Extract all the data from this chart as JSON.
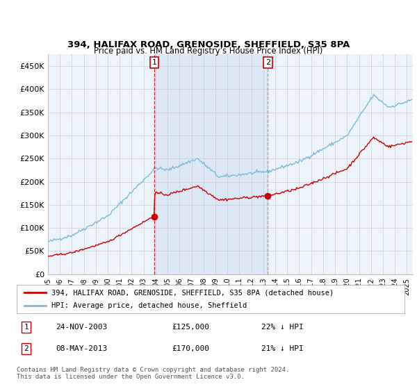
{
  "title": "394, HALIFAX ROAD, GRENOSIDE, SHEFFIELD, S35 8PA",
  "subtitle": "Price paid vs. HM Land Registry’s House Price Index (HPI)",
  "xlim_start": 1995.0,
  "xlim_end": 2025.5,
  "ylim": [
    0,
    475000
  ],
  "yticks": [
    0,
    50000,
    100000,
    150000,
    200000,
    250000,
    300000,
    350000,
    400000,
    450000
  ],
  "ytick_labels": [
    "£0",
    "£50K",
    "£100K",
    "£150K",
    "£200K",
    "£250K",
    "£300K",
    "£350K",
    "£400K",
    "£450K"
  ],
  "sale1_x": 2003.9,
  "sale1_y": 125000,
  "sale2_x": 2013.37,
  "sale2_y": 170000,
  "hpi_color": "#7bb8d8",
  "sale_color": "#cc0000",
  "vline1_color": "#cc0000",
  "vline2_color": "#8888aa",
  "shade_color": "#dce8f5",
  "grid_color": "#cccccc",
  "bg_color": "#edf4fb",
  "legend_label1": "394, HALIFAX ROAD, GRENOSIDE, SHEFFIELD, S35 8PA (detached house)",
  "legend_label2": "HPI: Average price, detached house, Sheffield",
  "sale1_date": "24-NOV-2003",
  "sale1_price": "£125,000",
  "sale1_hpi": "22% ↓ HPI",
  "sale2_date": "08-MAY-2013",
  "sale2_price": "£170,000",
  "sale2_hpi": "21% ↓ HPI",
  "footer": "Contains HM Land Registry data © Crown copyright and database right 2024.\nThis data is licensed under the Open Government Licence v3.0."
}
